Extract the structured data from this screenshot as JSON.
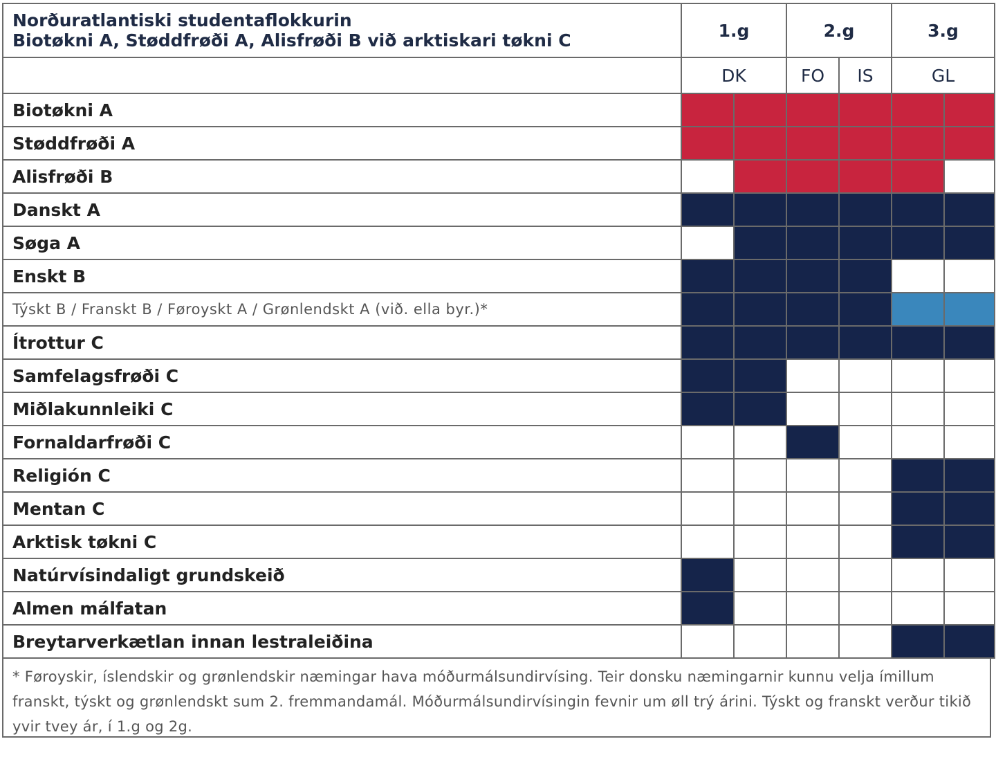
{
  "header": {
    "title_line1": "Norðuratlantiski studentaflokkurin",
    "title_line2": "Biotøkni A, Støddfrøði A, Alisfrøði B við arktiskari tøkni C",
    "years": [
      "1.g",
      "2.g",
      "3.g"
    ],
    "countries": [
      "DK",
      "FO",
      "IS",
      "GL"
    ]
  },
  "colors": {
    "red": "#c8243e",
    "navy": "#15244a",
    "blue": "#3a87bc",
    "white": "#ffffff"
  },
  "column_keys": [
    "1g-a",
    "1g-b",
    "2g-fo",
    "2g-is",
    "3g-a",
    "3g-b"
  ],
  "rows": [
    {
      "subject": "Biotøkni A",
      "cells": [
        "red",
        "red",
        "red",
        "red",
        "red",
        "red"
      ]
    },
    {
      "subject": "Støddfrøði A",
      "cells": [
        "red",
        "red",
        "red",
        "red",
        "red",
        "red"
      ]
    },
    {
      "subject": "Alisfrøði B",
      "cells": [
        "white",
        "red",
        "red",
        "red",
        "red",
        "white"
      ]
    },
    {
      "subject": "Danskt A",
      "cells": [
        "navy",
        "navy",
        "navy",
        "navy",
        "navy",
        "navy"
      ]
    },
    {
      "subject": "Søga A",
      "cells": [
        "white",
        "navy",
        "navy",
        "navy",
        "navy",
        "navy"
      ]
    },
    {
      "subject": "Enskt B",
      "cells": [
        "navy",
        "navy",
        "navy",
        "navy",
        "white",
        "white"
      ]
    },
    {
      "subject": "Týskt B / Franskt B / Føroyskt A / Grønlendskt A (við. ella byr.)*",
      "style": "light",
      "cells": [
        "navy",
        "navy",
        "navy",
        "navy",
        "blue",
        "blue"
      ]
    },
    {
      "subject": "Ítrottur C",
      "cells": [
        "navy",
        "navy",
        "navy",
        "navy",
        "navy",
        "navy"
      ]
    },
    {
      "subject": "Samfelagsfrøði C",
      "cells": [
        "navy",
        "navy",
        "white",
        "white",
        "white",
        "white"
      ]
    },
    {
      "subject": "Miðlakunnleiki C",
      "cells": [
        "navy",
        "navy",
        "white",
        "white",
        "white",
        "white"
      ]
    },
    {
      "subject": "Fornaldarfrøði C",
      "cells": [
        "white",
        "white",
        "navy",
        "white",
        "white",
        "white"
      ]
    },
    {
      "subject": "Religión C",
      "cells": [
        "white",
        "white",
        "white",
        "white",
        "navy",
        "navy"
      ]
    },
    {
      "subject": "Mentan C",
      "cells": [
        "white",
        "white",
        "white",
        "white",
        "navy",
        "navy"
      ]
    },
    {
      "subject": "Arktisk tøkni C",
      "cells": [
        "white",
        "white",
        "white",
        "white",
        "navy",
        "navy"
      ]
    },
    {
      "subject": "Natúrvísindaligt grundskeið",
      "cells": [
        "navy",
        "white",
        "white",
        "white",
        "white",
        "white"
      ]
    },
    {
      "subject": "Almen málfatan",
      "cells": [
        "navy",
        "white",
        "white",
        "white",
        "white",
        "white"
      ]
    },
    {
      "subject": "Breytarverkætlan innan lestraleiðina",
      "cells": [
        "white",
        "white",
        "white",
        "white",
        "navy",
        "navy"
      ]
    }
  ],
  "footnote": "* Føroyskir, íslendskir og grønlendskir næmingar hava móðurmálsundirvísing. Teir donsku næmingarnir kunnu velja ímillum franskt, týskt og grønlendskt sum 2. fremmandamál. Móðurmálsundirvísingin fevnir um øll trý árini. Týskt og franskt verður tikið yvir tvey ár, í 1.g og 2g."
}
